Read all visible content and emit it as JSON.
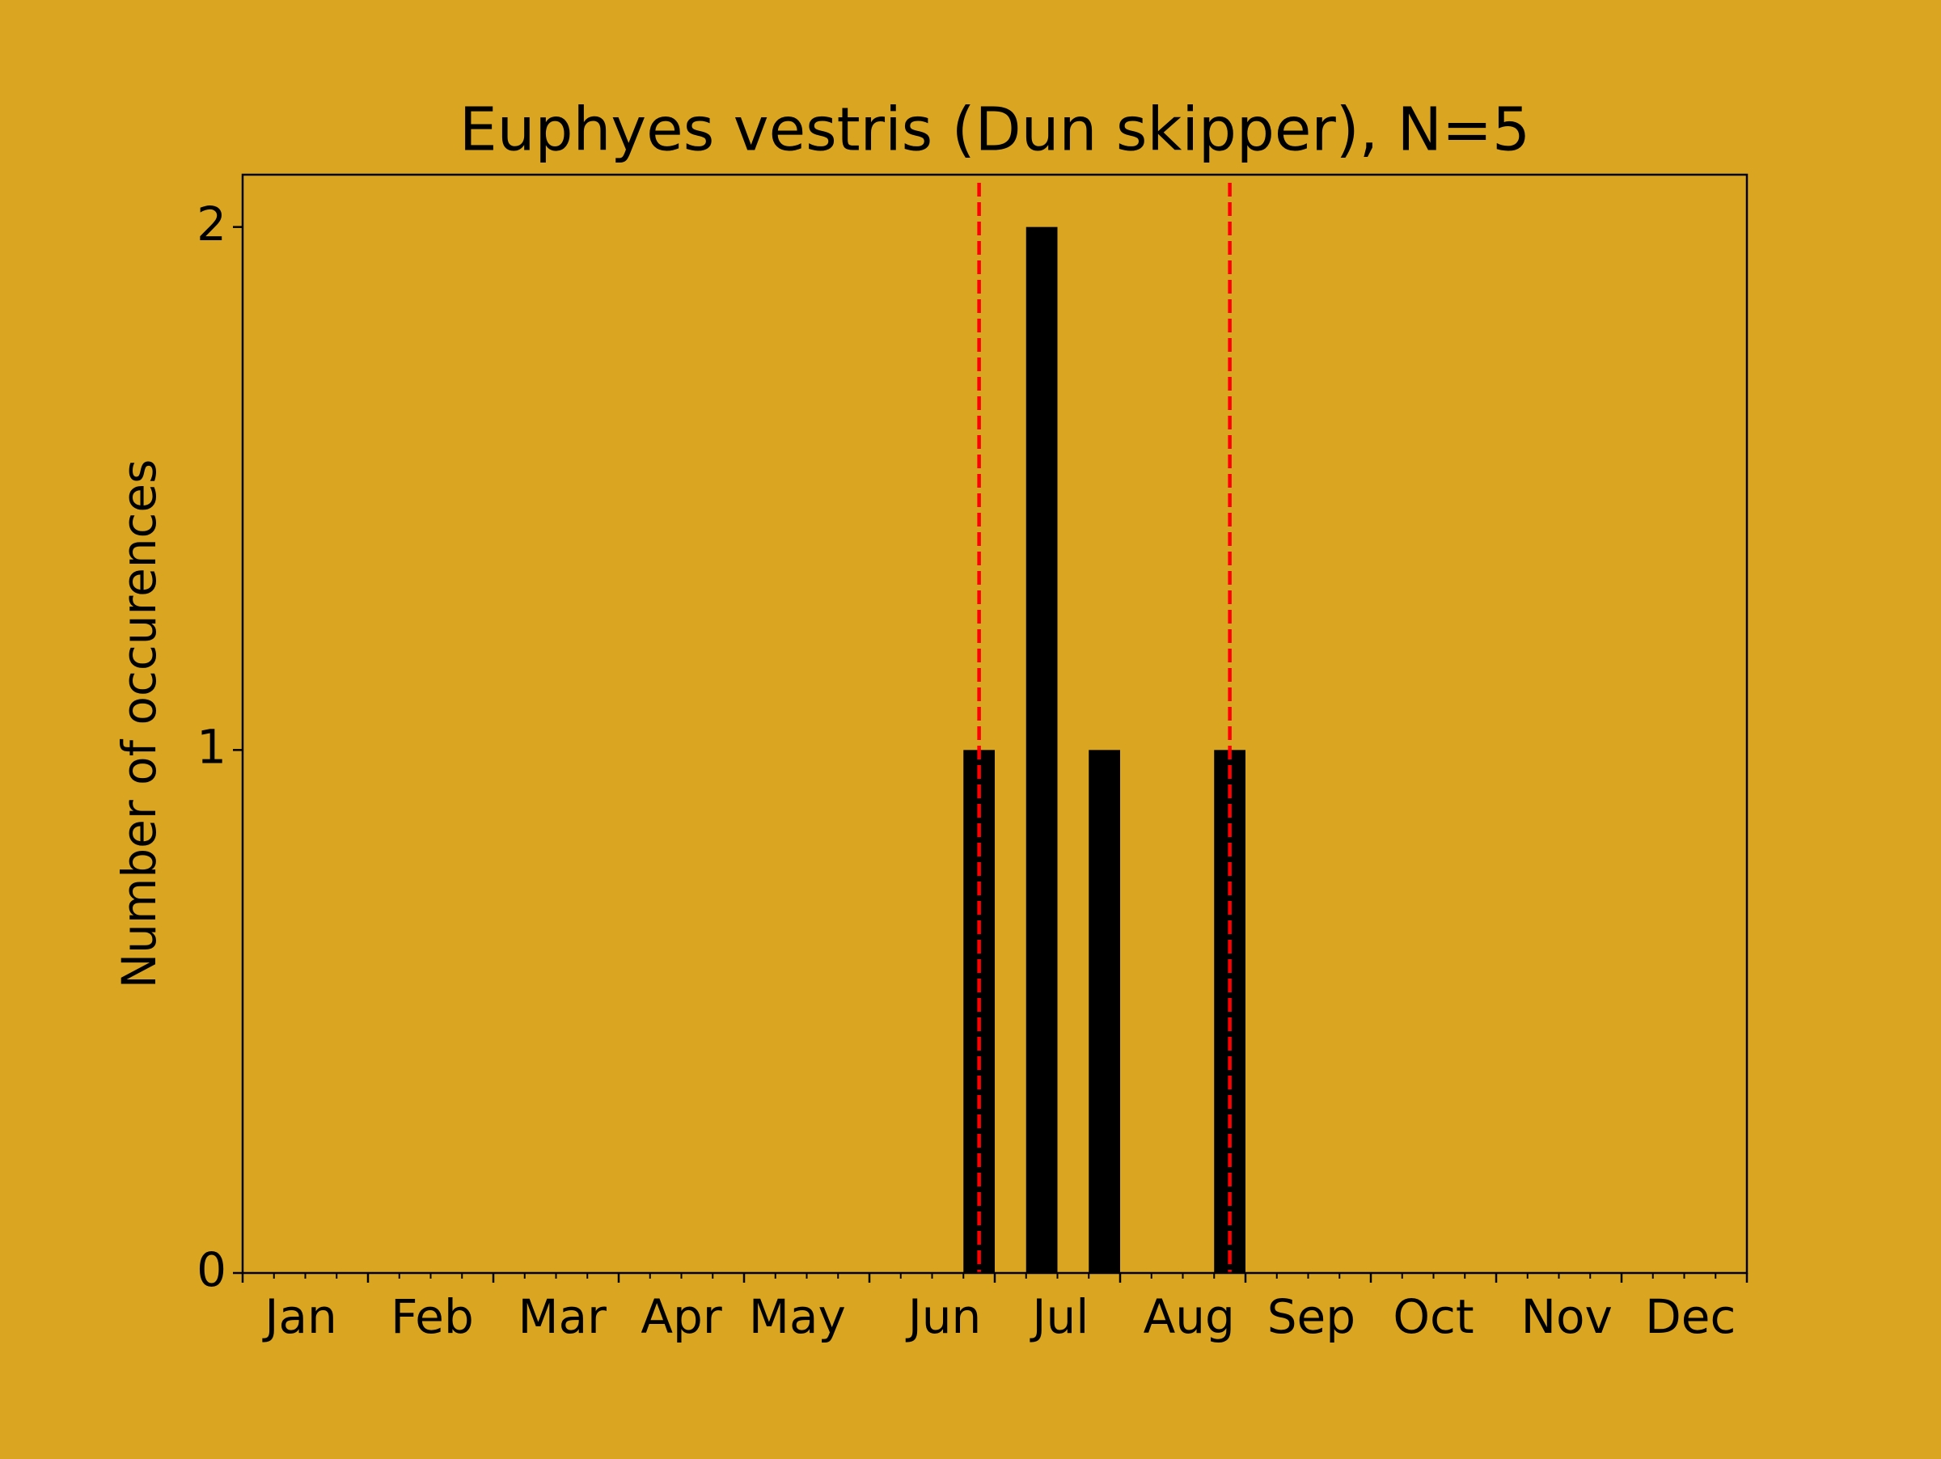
{
  "chart_data": {
    "type": "histogram",
    "title": "Euphyes vestris (Dun skipper), N=5",
    "ylabel": "Number of occurences",
    "bins": [
      23,
      24,
      25,
      26,
      27,
      28,
      29,
      30,
      31,
      32
    ],
    "values": [
      1,
      0,
      2,
      0,
      1,
      0,
      0,
      0,
      1
    ],
    "color": "#000000",
    "xlim": [
      0,
      48
    ],
    "xticks": [
      {
        "value": 1.86,
        "label": "Jan"
      },
      {
        "value": 6.05,
        "label": "Feb"
      },
      {
        "value": 10.2,
        "label": "Mar"
      },
      {
        "value": 14,
        "label": "Apr"
      },
      {
        "value": 17.7,
        "label": "May"
      },
      {
        "value": 22.4,
        "label": "Jun"
      },
      {
        "value": 26.1,
        "label": "Jul"
      },
      {
        "value": 30.2,
        "label": "Aug"
      },
      {
        "value": 34.1,
        "label": "Sep"
      },
      {
        "value": 38,
        "label": "Oct"
      },
      {
        "value": 42.25,
        "label": "Nov"
      },
      {
        "value": 46.2,
        "label": "Dec"
      }
    ],
    "xmajor_ticks": [
      0,
      4,
      8,
      12,
      16,
      20,
      24,
      28,
      32,
      36,
      40,
      44,
      48
    ],
    "xminor_ticks": [
      1,
      2,
      3,
      5,
      6,
      7,
      9,
      10,
      11,
      13,
      14,
      15,
      17,
      18,
      19,
      21,
      22,
      23,
      25,
      26,
      27,
      29,
      30,
      31,
      33,
      34,
      35,
      37,
      38,
      39,
      41,
      42,
      43,
      45,
      46,
      47
    ],
    "ylim": [
      0,
      2.1
    ],
    "yticks": [
      0,
      1,
      2
    ],
    "vlines": [
      23.5,
      31.5
    ],
    "vline_color": "#ff0000"
  }
}
